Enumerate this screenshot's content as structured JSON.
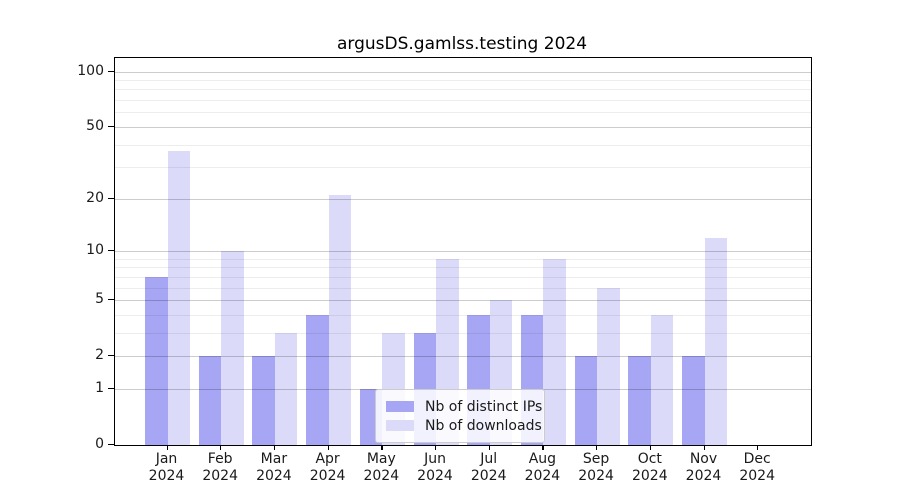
{
  "chart_data": {
    "type": "bar",
    "title": "argusDS.gamlss.testing 2024",
    "categories": [
      "Jan",
      "Feb",
      "Mar",
      "Apr",
      "May",
      "Jun",
      "Jul",
      "Aug",
      "Sep",
      "Oct",
      "Nov",
      "Dec"
    ],
    "x_tick_second_line": "2024",
    "series": [
      {
        "name": "Nb of distinct IPs",
        "color": "#a6a6f4",
        "values": [
          7,
          2,
          2,
          4,
          1,
          3,
          4,
          4,
          2,
          2,
          2,
          0
        ]
      },
      {
        "name": "Nb of downloads",
        "color": "#dbdbf9",
        "values": [
          37,
          10,
          3,
          21,
          3,
          9,
          5,
          9,
          6,
          4,
          12,
          0
        ]
      }
    ],
    "y_axis": {
      "scale": "log1p",
      "major_ticks": [
        0,
        1,
        2,
        5,
        10,
        20,
        50,
        100
      ],
      "minor_ticks": [
        3,
        4,
        6,
        7,
        8,
        9,
        30,
        40,
        60,
        70,
        80,
        90
      ],
      "ylim": [
        0,
        119
      ]
    },
    "legend": {
      "position": "lower-center"
    },
    "grid": true
  },
  "colors": {
    "background": "#ffffff",
    "axis": "#000000",
    "text": "#1a1a1a",
    "grid_major": "rgba(0,0,0,0.20)",
    "grid_minor": "rgba(0,0,0,0.07)",
    "legend_border": "#cccccc",
    "legend_bg": "rgba(255,255,255,0.85)"
  }
}
